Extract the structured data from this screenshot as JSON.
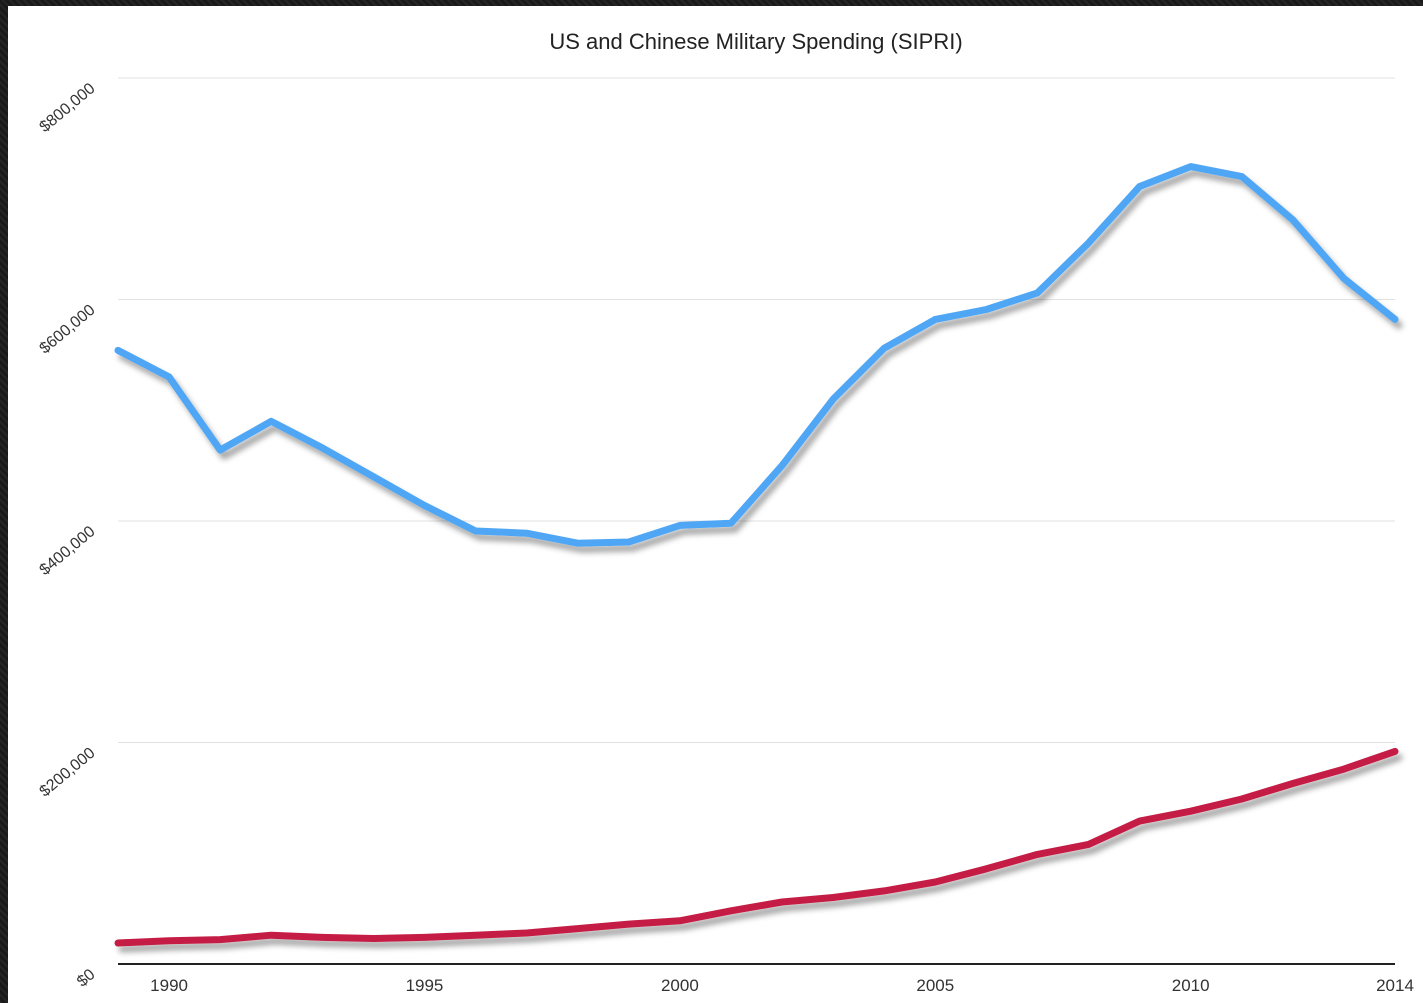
{
  "chart_data": {
    "type": "line",
    "title": "US and Chinese Military Spending (SIPRI)",
    "xlabel": "",
    "ylabel": "",
    "xlim": [
      1989,
      2014
    ],
    "ylim": [
      0,
      800000
    ],
    "y_ticks": [
      0,
      200000,
      400000,
      600000,
      800000
    ],
    "y_tick_labels": [
      "$0",
      "$200,000",
      "$400,000",
      "$600,000",
      "$800,000"
    ],
    "x_ticks": [
      1990,
      1995,
      2000,
      2005,
      2010,
      2014
    ],
    "x_tick_labels": [
      "1990",
      "1995",
      "2000",
      "2005",
      "2010",
      "2014"
    ],
    "grid": true,
    "x": [
      1989,
      1990,
      1991,
      1992,
      1993,
      1994,
      1995,
      1996,
      1997,
      1998,
      1999,
      2000,
      2001,
      2002,
      2003,
      2004,
      2005,
      2006,
      2007,
      2008,
      2009,
      2010,
      2011,
      2012,
      2013,
      2014
    ],
    "series": [
      {
        "color": "#4fa6f5",
        "values": [
          554000,
          530000,
          464000,
          490000,
          466000,
          440000,
          414000,
          391000,
          389000,
          380000,
          381000,
          396000,
          398000,
          450000,
          510000,
          556000,
          582000,
          591000,
          606000,
          651000,
          702000,
          720000,
          711000,
          672000,
          619000,
          582000
        ]
      },
      {
        "color": "#c41e45",
        "values": [
          19000,
          21000,
          22000,
          26000,
          24000,
          23000,
          24000,
          26000,
          28000,
          32000,
          36000,
          39000,
          48000,
          56000,
          60000,
          66000,
          74000,
          86000,
          99000,
          108000,
          129000,
          138000,
          149000,
          163000,
          176000,
          192000
        ]
      }
    ]
  }
}
